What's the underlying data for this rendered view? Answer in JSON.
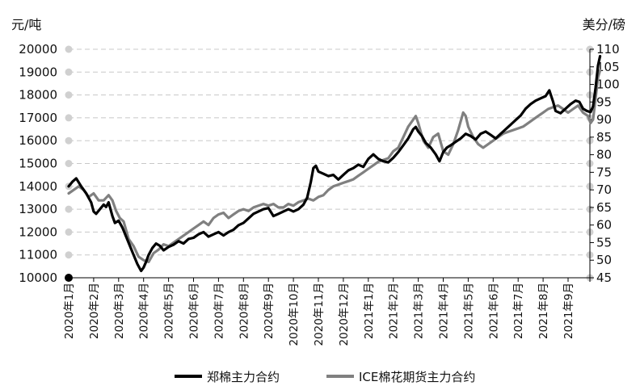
{
  "chart_data": {
    "type": "line",
    "left_unit": "元/吨",
    "right_unit": "美分/磅",
    "left_ylim": [
      10000,
      20000
    ],
    "right_ylim": [
      45,
      110
    ],
    "left_ticks": [
      "10000",
      "11000",
      "12000",
      "13000",
      "14000",
      "15000",
      "16000",
      "17000",
      "18000",
      "19000",
      "20000"
    ],
    "right_ticks": [
      "45",
      "50",
      "55",
      "60",
      "65",
      "70",
      "75",
      "80",
      "85",
      "90",
      "95",
      "100",
      "105",
      "110"
    ],
    "categories": [
      "2020年1月",
      "2020年2月",
      "2020年3月",
      "2020年4月",
      "2020年5月",
      "2020年6月",
      "2020年7月",
      "2020年8月",
      "2020年9月",
      "2020年10月",
      "2020年11月",
      "2020年12月",
      "2021年1月",
      "2021年2月",
      "2021年3月",
      "2021年4月",
      "2021年5月",
      "2021年6月",
      "2021年7月",
      "2021年8月",
      "2021年9月"
    ],
    "grid": "horizontal dashed",
    "legend_position": "bottom",
    "series": [
      {
        "name": "郑棉主力合约",
        "axis": "left",
        "color": "#000000",
        "x": [
          0,
          0.15,
          0.3,
          0.5,
          0.7,
          0.9,
          1.0,
          1.1,
          1.25,
          1.4,
          1.5,
          1.6,
          1.75,
          1.85,
          2.0,
          2.15,
          2.3,
          2.45,
          2.6,
          2.75,
          2.9,
          3.0,
          3.1,
          3.2,
          3.35,
          3.5,
          3.65,
          3.8,
          4.0,
          4.2,
          4.4,
          4.6,
          4.8,
          5.0,
          5.2,
          5.4,
          5.6,
          5.8,
          6.0,
          6.2,
          6.4,
          6.6,
          6.8,
          7.0,
          7.2,
          7.4,
          7.6,
          7.8,
          8.0,
          8.2,
          8.4,
          8.6,
          8.8,
          9.0,
          9.2,
          9.4,
          9.55,
          9.7,
          9.8,
          9.9,
          10.0,
          10.2,
          10.4,
          10.6,
          10.8,
          11.0,
          11.2,
          11.4,
          11.6,
          11.8,
          12.0,
          12.2,
          12.4,
          12.6,
          12.8,
          13.0,
          13.2,
          13.4,
          13.6,
          13.8,
          13.9,
          14.0,
          14.15,
          14.3,
          14.5,
          14.7,
          14.85,
          15.0,
          15.15,
          15.3,
          15.5,
          15.7,
          15.9,
          16.1,
          16.3,
          16.5,
          16.7,
          16.9,
          17.1,
          17.3,
          17.5,
          17.7,
          17.9,
          18.1,
          18.3,
          18.5,
          18.7,
          18.9,
          19.1,
          19.25,
          19.4,
          19.5,
          19.7,
          19.9,
          20.1,
          20.3,
          20.45,
          20.6,
          20.75,
          20.9,
          21.0,
          21.1,
          21.2,
          21.28
        ],
        "values": [
          14000,
          14200,
          14350,
          14000,
          13700,
          13300,
          12900,
          12800,
          13000,
          13200,
          13100,
          13300,
          12700,
          12400,
          12500,
          12200,
          11800,
          11400,
          11000,
          10600,
          10300,
          10450,
          10700,
          11000,
          11300,
          11500,
          11400,
          11200,
          11350,
          11450,
          11600,
          11500,
          11700,
          11750,
          11900,
          12000,
          11800,
          11900,
          12000,
          11850,
          12000,
          12100,
          12300,
          12400,
          12600,
          12800,
          12900,
          13000,
          13050,
          12700,
          12800,
          12900,
          13000,
          12900,
          13000,
          13200,
          13500,
          14200,
          14800,
          14900,
          14650,
          14550,
          14450,
          14500,
          14300,
          14500,
          14700,
          14800,
          14950,
          14850,
          15200,
          15400,
          15200,
          15100,
          15050,
          15250,
          15500,
          15800,
          16100,
          16500,
          16600,
          16400,
          16200,
          15900,
          15700,
          15400,
          15100,
          15500,
          15700,
          15800,
          15950,
          16100,
          16300,
          16200,
          16050,
          16300,
          16400,
          16250,
          16100,
          16300,
          16500,
          16700,
          16900,
          17100,
          17400,
          17600,
          17750,
          17850,
          17950,
          18200,
          17700,
          17300,
          17200,
          17400,
          17600,
          17750,
          17700,
          17400,
          17300,
          17250,
          17500,
          18300,
          19300,
          19700
        ]
      },
      {
        "name": "ICE棉花期货主力合约",
        "axis": "right",
        "color": "#808080",
        "x": [
          0,
          0.2,
          0.4,
          0.6,
          0.8,
          1.0,
          1.2,
          1.4,
          1.6,
          1.75,
          1.9,
          2.05,
          2.2,
          2.4,
          2.6,
          2.8,
          3.0,
          3.2,
          3.4,
          3.6,
          3.8,
          4.0,
          4.2,
          4.4,
          4.6,
          4.8,
          5.0,
          5.2,
          5.4,
          5.6,
          5.8,
          6.0,
          6.2,
          6.4,
          6.6,
          6.8,
          7.0,
          7.2,
          7.4,
          7.6,
          7.8,
          8.0,
          8.2,
          8.4,
          8.6,
          8.8,
          9.0,
          9.2,
          9.4,
          9.6,
          9.8,
          10.0,
          10.2,
          10.4,
          10.6,
          10.8,
          11.0,
          11.2,
          11.4,
          11.6,
          11.8,
          12.0,
          12.2,
          12.4,
          12.6,
          12.8,
          13.0,
          13.2,
          13.4,
          13.6,
          13.8,
          13.9,
          14.0,
          14.2,
          14.4,
          14.6,
          14.8,
          15.0,
          15.2,
          15.4,
          15.6,
          15.8,
          15.9,
          16.0,
          16.2,
          16.4,
          16.6,
          16.8,
          17.0,
          17.2,
          17.4,
          17.6,
          17.8,
          18.0,
          18.2,
          18.4,
          18.6,
          18.8,
          19.0,
          19.2,
          19.4,
          19.6,
          19.8,
          20.0,
          20.2,
          20.4,
          20.6,
          20.8,
          20.9,
          21.0,
          21.1,
          21.2,
          21.28
        ],
        "values": [
          69,
          70,
          71,
          70,
          68,
          69,
          67,
          67,
          68.5,
          67,
          64,
          62,
          61,
          56,
          54,
          51,
          50,
          49.5,
          52,
          53,
          54.5,
          54,
          55,
          56,
          57,
          58,
          59,
          60,
          61,
          60,
          62,
          63,
          63.5,
          62,
          63,
          64,
          64.5,
          64,
          65,
          65.5,
          66,
          65.5,
          66,
          65,
          65,
          66,
          65.5,
          66.5,
          67,
          67.5,
          67,
          68,
          68.5,
          70,
          71,
          71.5,
          72,
          72.5,
          73,
          74,
          75,
          76,
          77,
          78,
          78.5,
          79,
          81,
          82,
          85,
          88,
          90,
          91,
          89,
          84,
          82,
          85,
          86,
          81,
          80,
          83,
          87,
          92,
          91,
          88,
          85,
          83,
          82,
          83,
          84,
          85,
          86,
          86.5,
          87,
          87.5,
          88,
          89,
          90,
          91,
          92,
          93,
          93.5,
          94,
          93,
          92,
          93,
          94,
          92,
          91,
          89,
          90,
          96,
          102,
          104
        ]
      }
    ]
  }
}
